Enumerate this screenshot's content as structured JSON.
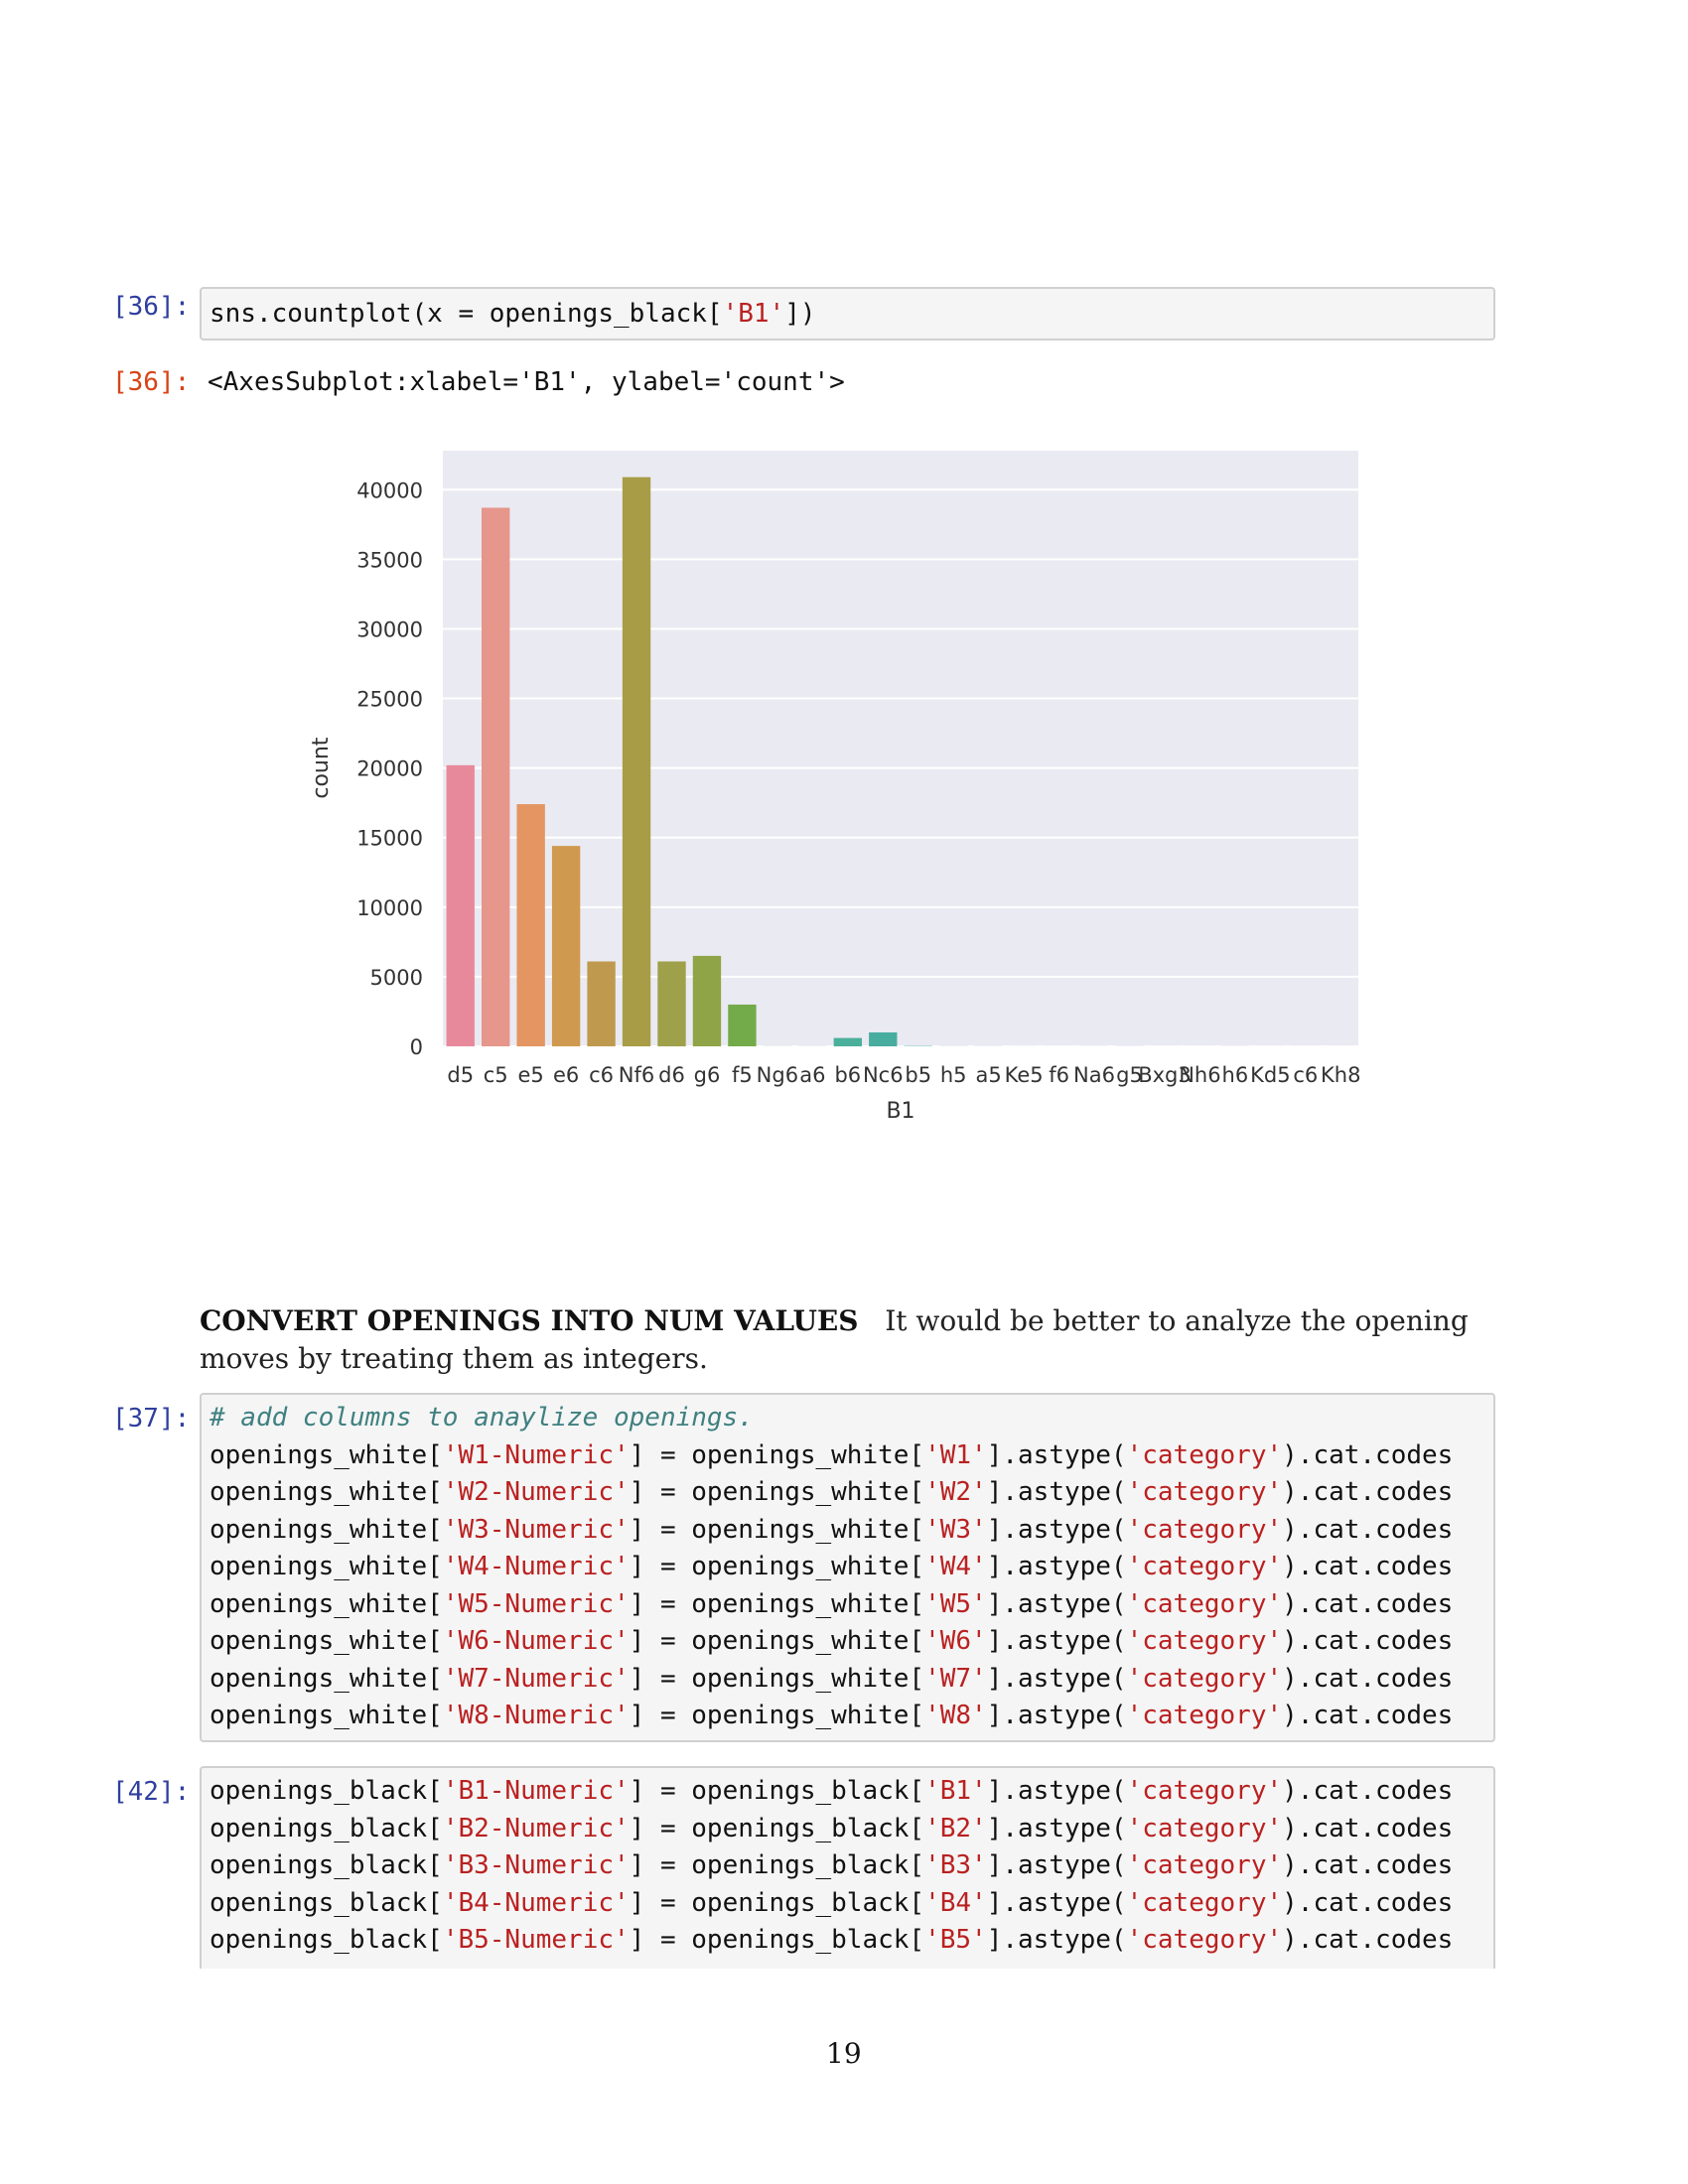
{
  "cell36": {
    "in_prompt": "[36]:",
    "code_parts": [
      "sns.countplot(x = openings_black[",
      "'B1'",
      "])"
    ],
    "out_prompt": "[36]:",
    "out_text": "<AxesSubplot:xlabel='B1', ylabel='count'>"
  },
  "chart_data": {
    "type": "bar",
    "xlabel": "B1",
    "ylabel": "count",
    "ylim": [
      0,
      42800
    ],
    "yticks": [
      0,
      5000,
      10000,
      15000,
      20000,
      25000,
      30000,
      35000,
      40000
    ],
    "grid": true,
    "background": "#eaeaf2",
    "categories": [
      "d5",
      "c5",
      "e5",
      "e6",
      "c6",
      "Nf6",
      "d6",
      "g6",
      "f5",
      "Ng6",
      "a6",
      "b6",
      "Nc6",
      "b5",
      "h5",
      "a5",
      "Ke5",
      "f6",
      "Na6",
      "g5",
      "Bxg3",
      "Nh6",
      "h6",
      "Kd5",
      "c6",
      "Kh8"
    ],
    "values": [
      20200,
      38700,
      17400,
      14400,
      6100,
      40900,
      6100,
      6500,
      3000,
      10,
      10,
      600,
      1000,
      30,
      10,
      10,
      5,
      5,
      5,
      10,
      5,
      5,
      10,
      5,
      5,
      5
    ],
    "colors": [
      "#e8899b",
      "#e6968a",
      "#e39562",
      "#cf9a4f",
      "#bf9a4e",
      "#a89c46",
      "#9fa04a",
      "#8fa446",
      "#73ab4a",
      "#58b17e",
      "#53b38f",
      "#4bb09b",
      "#48ad9f",
      "#4eaead",
      "#52afbd",
      "#55aec8",
      "#5aabd4",
      "#6ea5de",
      "#8c9de6",
      "#a794e6",
      "#bd8be4",
      "#d187dc",
      "#de84cc",
      "#e486bc",
      "#e888ac",
      "#eb8a9f"
    ]
  },
  "markdown": {
    "heading": "CONVERT OPENINGS INTO NUM VALUES",
    "text": "It would be better to analyze the opening moves by treating them as integers."
  },
  "cell37": {
    "in_prompt": "[37]:",
    "comment": "# add columns to anaylize openings.",
    "lines": [
      [
        "openings_white[",
        "'W1-Numeric'",
        "] = openings_white[",
        "'W1'",
        "].astype(",
        "'category'",
        ").cat.codes"
      ],
      [
        "openings_white[",
        "'W2-Numeric'",
        "] = openings_white[",
        "'W2'",
        "].astype(",
        "'category'",
        ").cat.codes"
      ],
      [
        "openings_white[",
        "'W3-Numeric'",
        "] = openings_white[",
        "'W3'",
        "].astype(",
        "'category'",
        ").cat.codes"
      ],
      [
        "openings_white[",
        "'W4-Numeric'",
        "] = openings_white[",
        "'W4'",
        "].astype(",
        "'category'",
        ").cat.codes"
      ],
      [
        "openings_white[",
        "'W5-Numeric'",
        "] = openings_white[",
        "'W5'",
        "].astype(",
        "'category'",
        ").cat.codes"
      ],
      [
        "openings_white[",
        "'W6-Numeric'",
        "] = openings_white[",
        "'W6'",
        "].astype(",
        "'category'",
        ").cat.codes"
      ],
      [
        "openings_white[",
        "'W7-Numeric'",
        "] = openings_white[",
        "'W7'",
        "].astype(",
        "'category'",
        ").cat.codes"
      ],
      [
        "openings_white[",
        "'W8-Numeric'",
        "] = openings_white[",
        "'W8'",
        "].astype(",
        "'category'",
        ").cat.codes"
      ]
    ]
  },
  "cell42": {
    "in_prompt": "[42]:",
    "lines": [
      [
        "openings_black[",
        "'B1-Numeric'",
        "] = openings_black[",
        "'B1'",
        "].astype(",
        "'category'",
        ").cat.codes"
      ],
      [
        "openings_black[",
        "'B2-Numeric'",
        "] = openings_black[",
        "'B2'",
        "].astype(",
        "'category'",
        ").cat.codes"
      ],
      [
        "openings_black[",
        "'B3-Numeric'",
        "] = openings_black[",
        "'B3'",
        "].astype(",
        "'category'",
        ").cat.codes"
      ],
      [
        "openings_black[",
        "'B4-Numeric'",
        "] = openings_black[",
        "'B4'",
        "].astype(",
        "'category'",
        ").cat.codes"
      ],
      [
        "openings_black[",
        "'B5-Numeric'",
        "] = openings_black[",
        "'B5'",
        "].astype(",
        "'category'",
        ").cat.codes"
      ]
    ]
  },
  "page_number": "19"
}
